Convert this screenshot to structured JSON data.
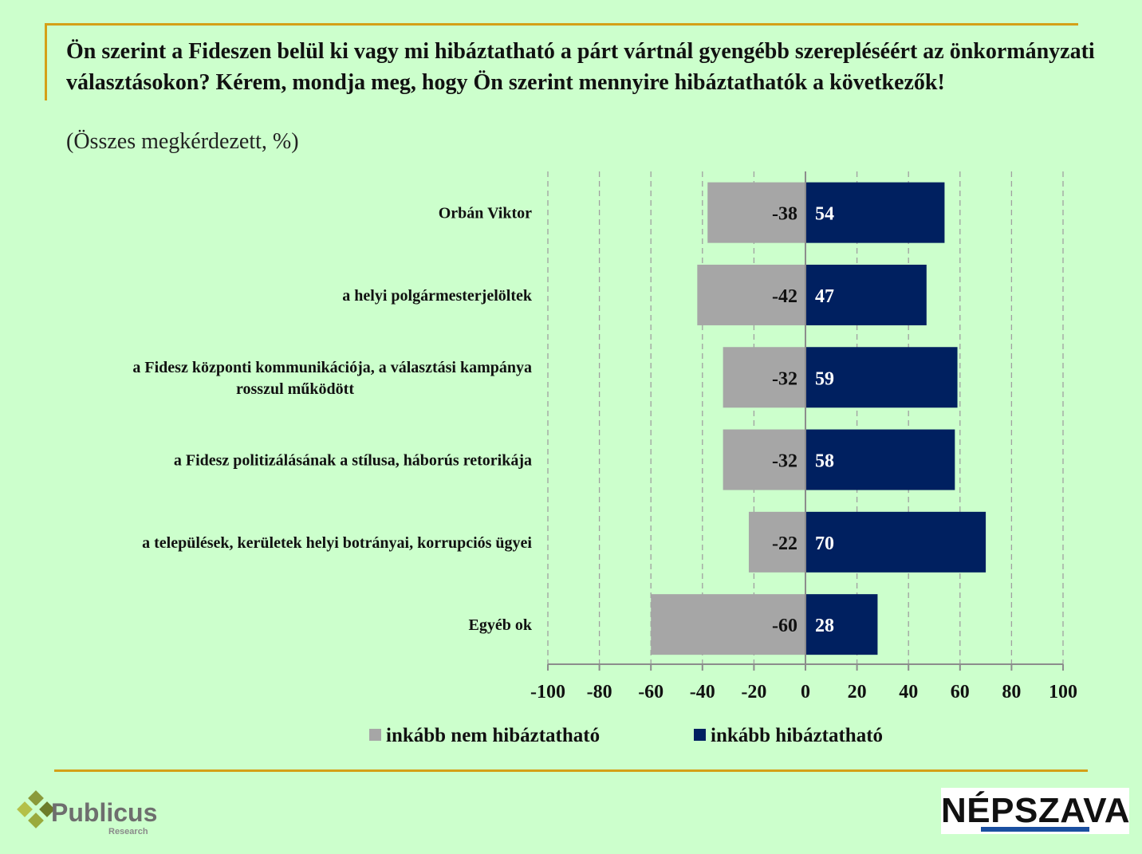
{
  "header": {
    "title": "Ön szerint a Fideszen belül ki vagy mi hibáztatható a párt vártnál gyengébb szerepléséért az önkormányzati választásokon? Kérem, mondja meg, hogy Ön szerint mennyire hibáztathatók a következők!",
    "subtitle": "(Összes megkérdezett, %)"
  },
  "chart_data": {
    "type": "bar",
    "orientation": "horizontal",
    "stacked": "diverging",
    "categories": [
      [
        "Orbán Viktor"
      ],
      [
        "a helyi polgármesterjelöltek"
      ],
      [
        "a Fidesz központi kommunikációja, a választási kampánya",
        "rosszul működött"
      ],
      [
        "a Fidesz politizálásának a stílusa, háborús retorikája"
      ],
      [
        "a települések, kerületek helyi botrányai, korrupciós ügyei"
      ],
      [
        "Egyéb ok"
      ]
    ],
    "series": [
      {
        "name": "inkább nem hibáztatható",
        "color": "#a6a6a6",
        "values": [
          -38,
          -42,
          -32,
          -32,
          -22,
          -60
        ]
      },
      {
        "name": "inkább hibáztatható",
        "color": "#002060",
        "values": [
          54,
          47,
          59,
          58,
          70,
          28
        ]
      }
    ],
    "xlim": [
      -100,
      100
    ],
    "xticks": [
      -100,
      -80,
      -60,
      -40,
      -20,
      0,
      20,
      40,
      60,
      80,
      100
    ],
    "grid": "vertical-dashed",
    "legend_position": "bottom"
  },
  "logos": {
    "publicus": "Publicus",
    "publicus_sub": "Research",
    "nepszava": "NÉPSZAVA"
  },
  "colors": {
    "background": "#ccffcc",
    "accent": "#d4a017",
    "negative": "#a6a6a6",
    "positive": "#002060"
  }
}
